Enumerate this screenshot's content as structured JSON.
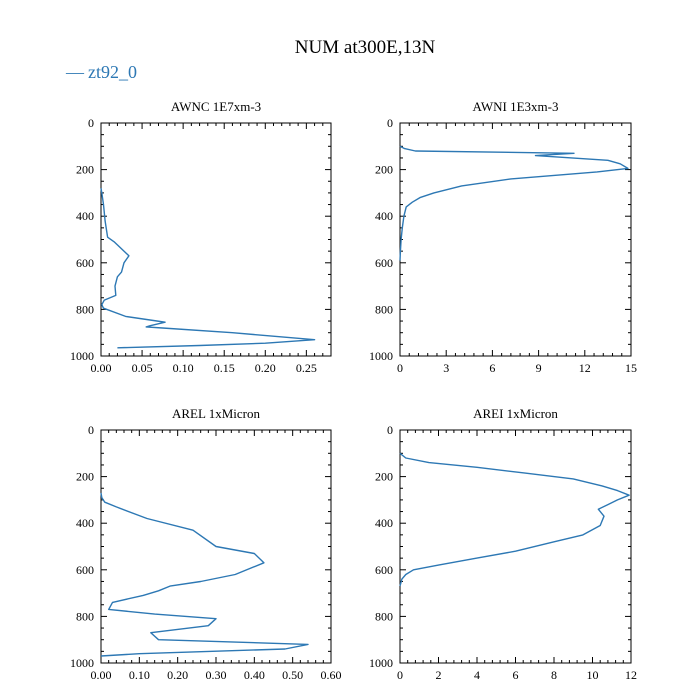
{
  "title": "NUM at300E,13N",
  "legend": {
    "symbol": "—",
    "label": "zt92_0",
    "color": "#2d78b4"
  },
  "chart_data": [
    {
      "type": "line",
      "title": "AWNC  1E7xm-3",
      "xlim": [
        0,
        0.28
      ],
      "xticks": [
        0,
        0.05,
        0.1,
        0.15,
        0.2,
        0.25
      ],
      "xtick_labels": [
        "0.00",
        "0.05",
        "0.10",
        "0.15",
        "0.20",
        "0.25"
      ],
      "ylim": [
        1000,
        0
      ],
      "yticks": [
        0,
        200,
        400,
        600,
        800,
        1000
      ],
      "ytick_labels": [
        "0",
        "200",
        "400",
        "600",
        "800",
        "1000"
      ],
      "series": [
        {
          "name": "zt92_0",
          "x": [
            0.0,
            0.001,
            0.003,
            0.005,
            0.008,
            0.016,
            0.034,
            0.028,
            0.025,
            0.02,
            0.017,
            0.018,
            0.004,
            0.001,
            0.003,
            0.03,
            0.068,
            0.078,
            0.06,
            0.055,
            0.075,
            0.16,
            0.26,
            0.2,
            0.12,
            0.02
          ],
          "y": [
            280,
            300,
            350,
            420,
            490,
            510,
            570,
            600,
            640,
            660,
            700,
            740,
            760,
            780,
            795,
            830,
            850,
            855,
            870,
            875,
            880,
            900,
            930,
            945,
            955,
            965
          ]
        }
      ]
    },
    {
      "type": "line",
      "title": "AWNI  1E3xm-3",
      "xlim": [
        0,
        15
      ],
      "xticks": [
        0,
        3,
        6,
        9,
        12,
        15
      ],
      "xtick_labels": [
        "0",
        "3",
        "6",
        "9",
        "12",
        "15"
      ],
      "ylim": [
        1000,
        0
      ],
      "yticks": [
        0,
        200,
        400,
        600,
        800,
        1000
      ],
      "ytick_labels": [
        "0",
        "200",
        "400",
        "600",
        "800",
        "1000"
      ],
      "series": [
        {
          "name": "zt92_0",
          "x": [
            0.0,
            0.3,
            1.0,
            11.3,
            8.8,
            13.5,
            14.3,
            14.8,
            12.8,
            7.2,
            4.0,
            2.2,
            1.3,
            0.8,
            0.4,
            0.25,
            0.15,
            0.07,
            0.02,
            0.0
          ],
          "y": [
            100,
            110,
            120,
            130,
            140,
            160,
            175,
            195,
            210,
            240,
            270,
            300,
            320,
            340,
            360,
            400,
            450,
            500,
            560,
            590
          ]
        }
      ]
    },
    {
      "type": "line",
      "title": "AREL  1xMicron",
      "xlim": [
        0,
        0.6
      ],
      "xticks": [
        0,
        0.1,
        0.2,
        0.3,
        0.4,
        0.5,
        0.6
      ],
      "xtick_labels": [
        "0.00",
        "0.10",
        "0.20",
        "0.30",
        "0.40",
        "0.50",
        "0.60"
      ],
      "ylim": [
        1000,
        0
      ],
      "yticks": [
        0,
        200,
        400,
        600,
        800,
        1000
      ],
      "ytick_labels": [
        "0",
        "200",
        "400",
        "600",
        "800",
        "1000"
      ],
      "series": [
        {
          "name": "zt92_0",
          "x": [
            0.0,
            0.002,
            0.01,
            0.04,
            0.12,
            0.24,
            0.3,
            0.4,
            0.425,
            0.35,
            0.26,
            0.18,
            0.15,
            0.11,
            0.03,
            0.02,
            0.14,
            0.3,
            0.28,
            0.13,
            0.15,
            0.54,
            0.48,
            0.1,
            0.0
          ],
          "y": [
            270,
            290,
            310,
            330,
            380,
            430,
            500,
            530,
            570,
            620,
            650,
            670,
            690,
            710,
            740,
            770,
            790,
            810,
            840,
            870,
            900,
            920,
            940,
            960,
            970
          ]
        }
      ]
    },
    {
      "type": "line",
      "title": "AREI  1xMicron",
      "xlim": [
        0,
        12
      ],
      "xticks": [
        0,
        2,
        4,
        6,
        8,
        10,
        12
      ],
      "xtick_labels": [
        "0",
        "2",
        "4",
        "6",
        "8",
        "10",
        "12"
      ],
      "ylim": [
        1000,
        0
      ],
      "yticks": [
        0,
        200,
        400,
        600,
        800,
        1000
      ],
      "ytick_labels": [
        "0",
        "200",
        "400",
        "600",
        "800",
        "1000"
      ],
      "series": [
        {
          "name": "zt92_0",
          "x": [
            0.0,
            0.3,
            1.5,
            4.0,
            6.5,
            9.0,
            10.5,
            11.3,
            11.9,
            11.3,
            10.8,
            10.3,
            10.6,
            10.4,
            9.5,
            8.0,
            6.0,
            4.0,
            2.0,
            0.7,
            0.3,
            0.1,
            0.0
          ],
          "y": [
            100,
            120,
            140,
            160,
            185,
            210,
            240,
            260,
            280,
            300,
            320,
            340,
            370,
            410,
            450,
            480,
            520,
            550,
            580,
            600,
            620,
            640,
            670
          ]
        }
      ]
    }
  ]
}
